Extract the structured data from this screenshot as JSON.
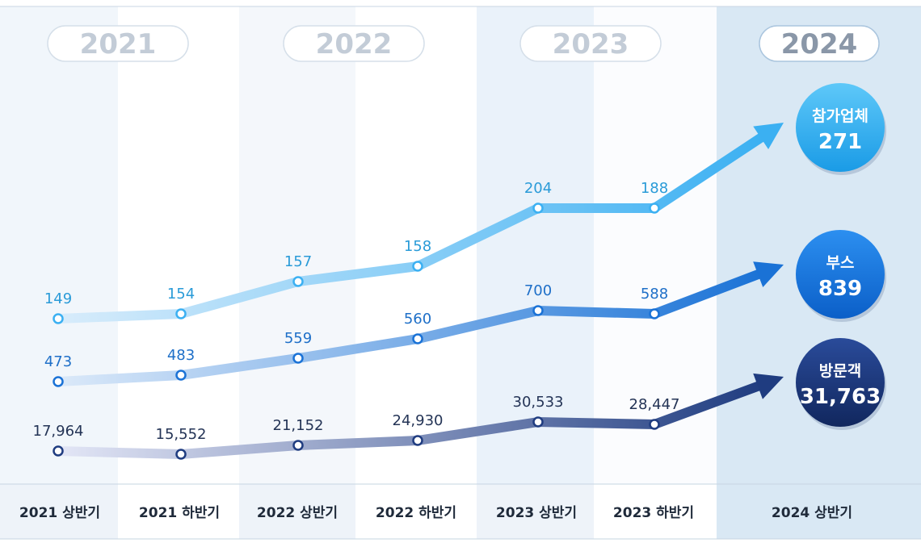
{
  "chart_data": {
    "type": "line",
    "years": [
      "2021",
      "2022",
      "2023",
      "2024"
    ],
    "categories": [
      "2021 상반기",
      "2021 하반기",
      "2022 상반기",
      "2022 하반기",
      "2023 상반기",
      "2023 하반기",
      "2024 상반기"
    ],
    "series": [
      {
        "name": "참가업체",
        "values": [
          149,
          154,
          157,
          158,
          204,
          188,
          271
        ],
        "labels": [
          "149",
          "154",
          "157",
          "158",
          "204",
          "188",
          "271"
        ],
        "color_start": "#d8ecfb",
        "color_end": "#3bb0f2",
        "label_color": "#2a9bd8"
      },
      {
        "name": "부스",
        "values": [
          473,
          483,
          559,
          560,
          700,
          588,
          839
        ],
        "labels": [
          "473",
          "483",
          "559",
          "560",
          "700",
          "588",
          "839"
        ],
        "color_start": "#dbe9f9",
        "color_end": "#1a72d6",
        "label_color": "#1e6fc8"
      },
      {
        "name": "방문객",
        "values": [
          17964,
          15552,
          21152,
          24930,
          30533,
          28447,
          31763
        ],
        "labels": [
          "17,964",
          "15,552",
          "21,152",
          "24,930",
          "30,533",
          "28,447",
          "31,763"
        ],
        "color_start": "#e3e6f6",
        "color_end": "#1f3c80",
        "label_color": "#243456"
      }
    ]
  }
}
